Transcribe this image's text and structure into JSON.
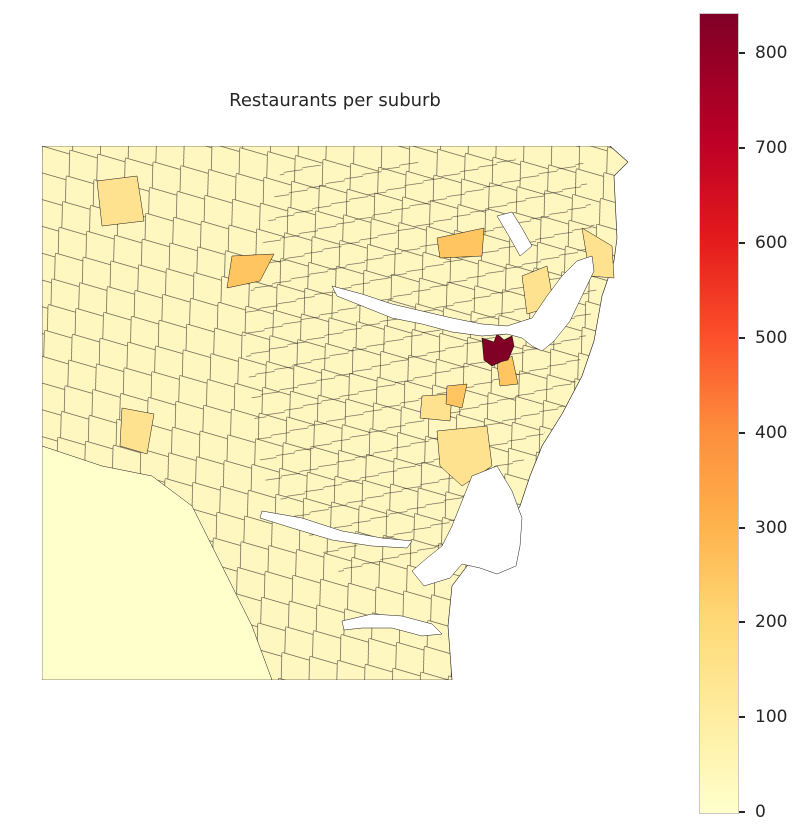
{
  "map": {
    "title": "Restaurants per suburb",
    "colorbar": {
      "ticks": [
        "0",
        "100",
        "200",
        "300",
        "400",
        "500",
        "600",
        "700",
        "800"
      ],
      "min": 0,
      "max": 842,
      "colormap": [
        "#ffffcc",
        "#ffeda0",
        "#fed976",
        "#feb24c",
        "#fd8d3c",
        "#fc4e2a",
        "#e31a1c",
        "#bd0026",
        "#800026"
      ]
    },
    "colors": {
      "low": "#ffffcc",
      "light": "#fff3b0",
      "mid": "#ffe28f",
      "high": "#fec560",
      "peak": "#800026",
      "boundary": "#1a1a1a",
      "water": "#ffffff"
    }
  }
}
